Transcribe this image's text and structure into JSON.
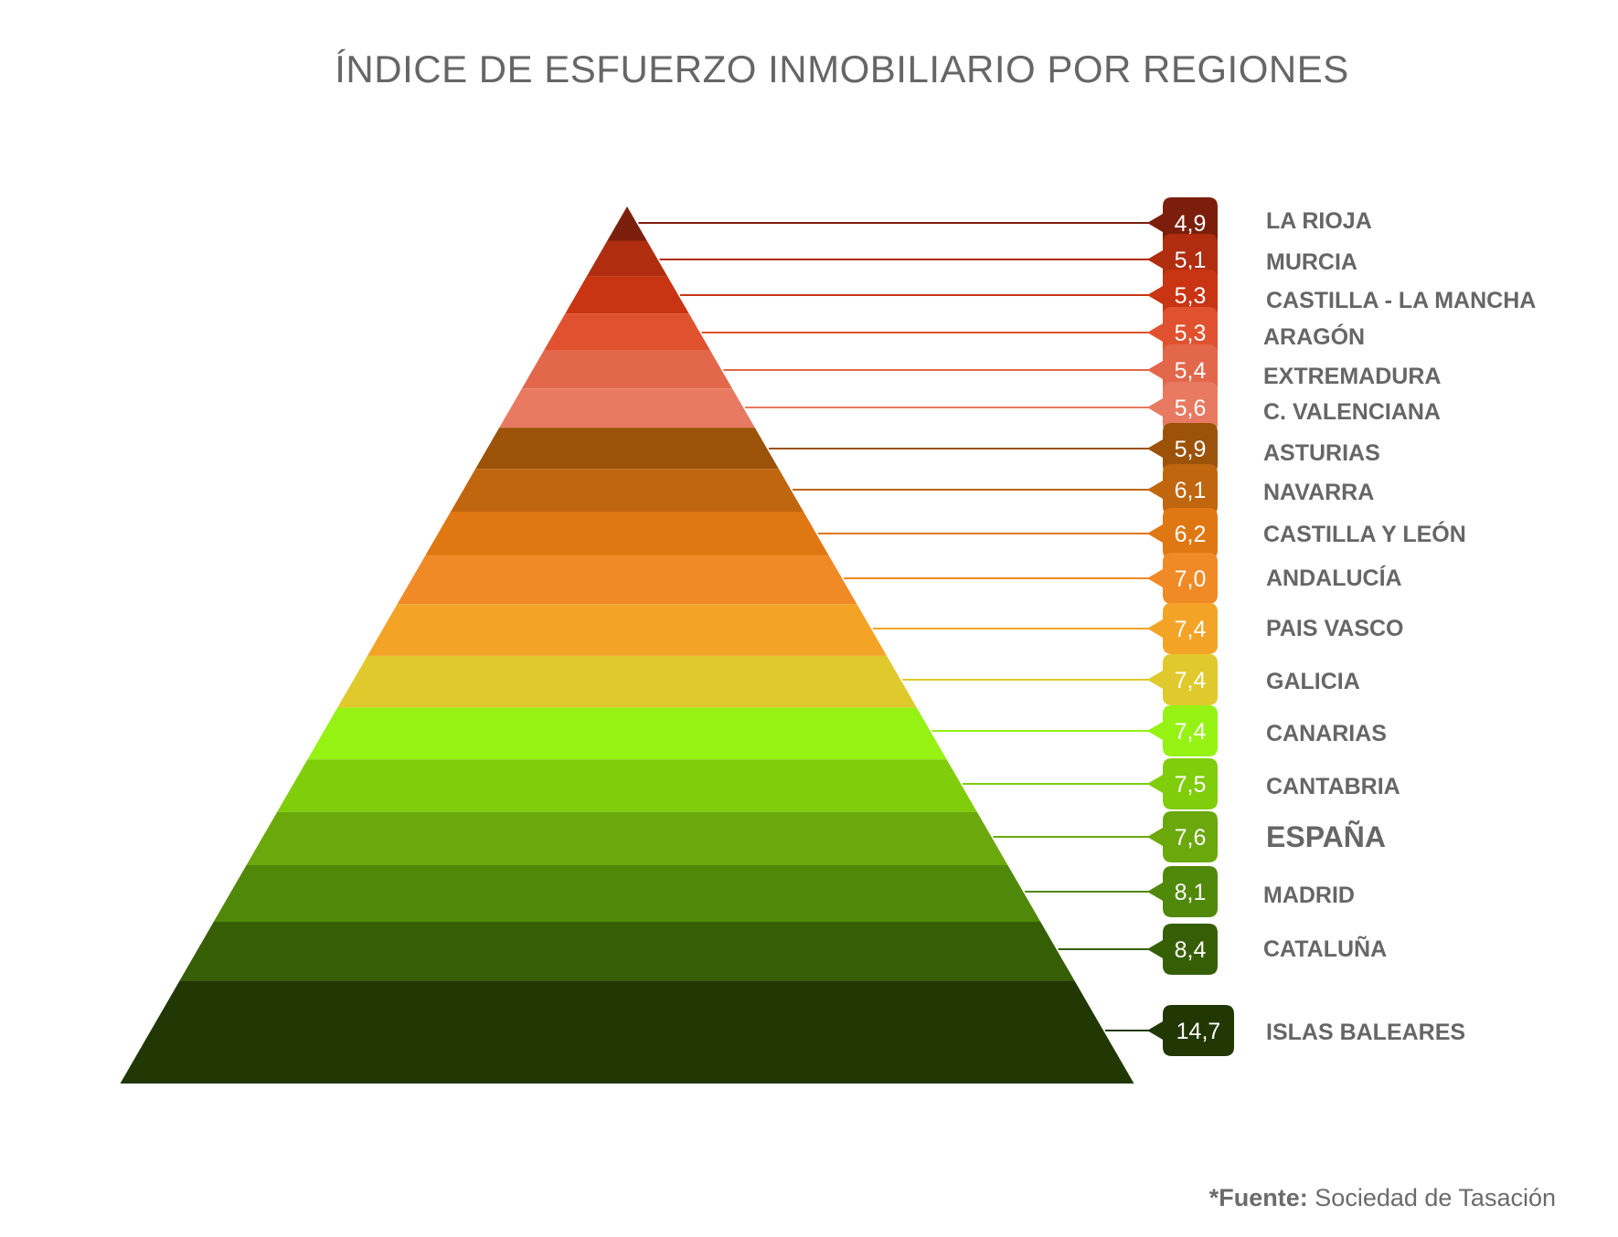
{
  "chart_data": {
    "type": "bar",
    "title": "ÍNDICE DE ESFUERZO INMOBILIARIO POR REGIONES",
    "categories": [
      "LA RIOJA",
      "MURCIA",
      "CASTILLA - LA MANCHA",
      "ARAGÓN",
      "EXTREMADURA",
      "C. VALENCIANA",
      "ASTURIAS",
      "NAVARRA",
      "CASTILLA Y LEÓN",
      "ANDALUCÍA",
      "PAIS VASCO",
      "GALICIA",
      "CANARIAS",
      "CANTABRIA",
      "ESPAÑA",
      "MADRID",
      "CATALUÑA",
      "ISLAS BALEARES"
    ],
    "values": [
      4.9,
      5.1,
      5.3,
      5.3,
      5.4,
      5.6,
      5.9,
      6.1,
      6.2,
      7.0,
      7.4,
      7.4,
      7.4,
      7.5,
      7.6,
      8.1,
      8.4,
      14.7
    ],
    "value_labels": [
      "4,9",
      "5,1",
      "5,3",
      "5,3",
      "5,4",
      "5,6",
      "5,9",
      "6,1",
      "6,2",
      "7,0",
      "7,4",
      "7,4",
      "7,4",
      "7,5",
      "7,6",
      "8,1",
      "8,4",
      "14,7"
    ],
    "colors": [
      "#7b1f0c",
      "#b02d10",
      "#c93412",
      "#e0522f",
      "#e2674b",
      "#e87a62",
      "#9c5209",
      "#c0660f",
      "#df7712",
      "#f08a26",
      "#f3a427",
      "#e0c92d",
      "#96f213",
      "#80cd0c",
      "#6aa80c",
      "#508909",
      "#365e04",
      "#213804"
    ],
    "highlight": "ESPAÑA",
    "source_label": "*Fuente:",
    "source_text": "Sociedad de Tasación"
  }
}
